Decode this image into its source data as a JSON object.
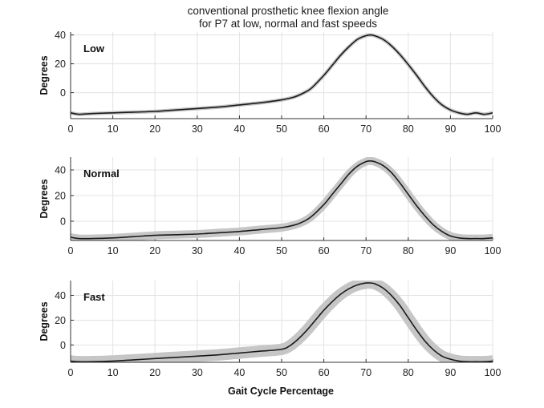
{
  "chart_data": {
    "type": "line",
    "title_lines": [
      "conventional prosthetic knee flexion angle",
      "for P7 at low, normal and fast speeds"
    ],
    "xlabel": "Gait Cycle Percentage",
    "xlim": [
      0,
      100
    ],
    "x_ticks": [
      "0",
      "10",
      "20",
      "30",
      "40",
      "50",
      "60",
      "70",
      "80",
      "90",
      "100"
    ],
    "grid": true,
    "panels": [
      {
        "label": "Low",
        "ylabel": "Degrees",
        "ylim": [
          -18,
          42
        ],
        "y_ticks": [
          "0",
          "20",
          "40"
        ],
        "band_width": 0.7,
        "series": {
          "x": [
            0,
            2,
            5,
            10,
            15,
            20,
            25,
            30,
            35,
            40,
            45,
            50,
            53,
            55,
            57,
            60,
            62,
            64,
            66,
            68,
            70,
            71,
            72,
            74,
            76,
            78,
            80,
            82,
            84,
            86,
            88,
            90,
            92,
            94,
            96,
            98,
            100
          ],
          "y": [
            -14,
            -15,
            -14.5,
            -14,
            -13.5,
            -13,
            -12,
            -11,
            -10,
            -8.5,
            -7,
            -5,
            -3,
            -0.5,
            3,
            12,
            19,
            26,
            32,
            37,
            39.5,
            40,
            39.5,
            37,
            32.5,
            26.5,
            19.5,
            12,
            4,
            -3,
            -8.5,
            -12,
            -14,
            -15,
            -14,
            -15,
            -14
          ]
        }
      },
      {
        "label": "Normal",
        "ylabel": "Degrees",
        "ylim": [
          -15,
          50
        ],
        "y_ticks": [
          "0",
          "20",
          "40"
        ],
        "band_width": 2.5,
        "series": {
          "x": [
            0,
            2,
            5,
            10,
            15,
            20,
            25,
            30,
            35,
            40,
            45,
            50,
            53,
            55,
            57,
            60,
            62,
            64,
            66,
            68,
            70,
            71,
            72,
            74,
            76,
            78,
            80,
            82,
            84,
            86,
            88,
            90,
            92,
            94,
            96,
            98,
            100
          ],
          "y": [
            -12.5,
            -13.5,
            -13.5,
            -13,
            -12,
            -11,
            -10.5,
            -10,
            -9,
            -8,
            -6.5,
            -5,
            -3,
            -0.5,
            3.5,
            13,
            21,
            29,
            37,
            43,
            46.5,
            47,
            46.5,
            43.5,
            38,
            30,
            21,
            12,
            4,
            -3,
            -8,
            -11.5,
            -13,
            -13.5,
            -13.5,
            -13.5,
            -13
          ]
        }
      },
      {
        "label": "Fast",
        "ylabel": "Degrees",
        "ylim": [
          -14,
          52
        ],
        "y_ticks": [
          "0",
          "20",
          "40"
        ],
        "band_width": 4,
        "series": {
          "x": [
            0,
            2,
            5,
            10,
            15,
            20,
            25,
            30,
            35,
            40,
            45,
            50,
            52,
            54,
            56,
            58,
            60,
            62,
            64,
            66,
            68,
            70,
            71,
            72,
            74,
            76,
            78,
            80,
            82,
            84,
            86,
            88,
            90,
            92,
            94,
            96,
            98,
            100
          ],
          "y": [
            -13,
            -13.5,
            -13.5,
            -13,
            -12,
            -11,
            -10,
            -9,
            -8,
            -6.5,
            -5,
            -3.5,
            -0.5,
            5,
            12,
            20,
            28,
            35,
            41,
            45.5,
            48.5,
            50,
            50,
            49.5,
            46,
            40,
            32,
            22,
            12,
            3,
            -4,
            -9,
            -11.5,
            -13,
            -13.5,
            -13.5,
            -13.5,
            -13
          ]
        }
      }
    ]
  }
}
